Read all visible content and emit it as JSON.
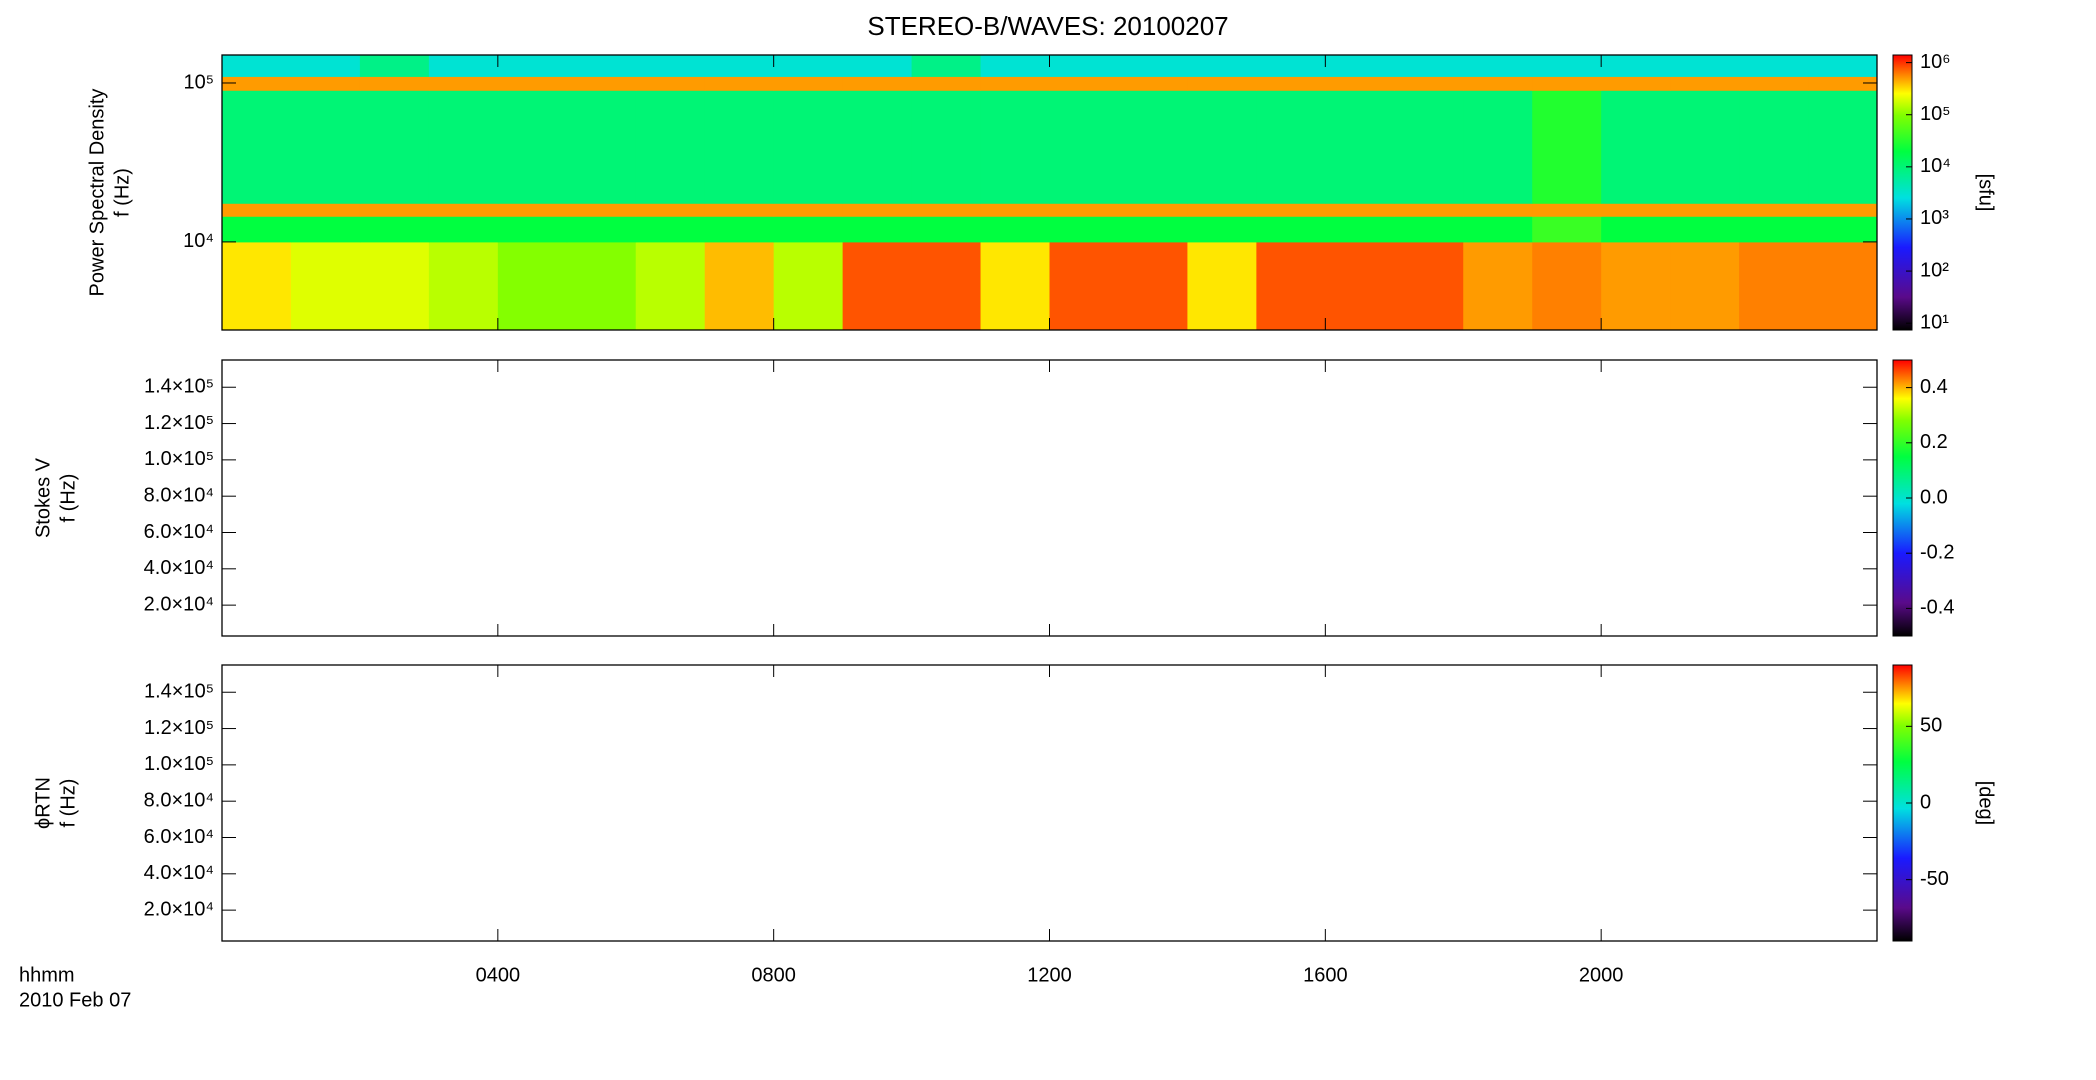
{
  "chart_data": [
    {
      "type": "spectrogram",
      "title": "STEREO-B/WAVES: 20100207",
      "ylabel": [
        "Power Spectral Density",
        "f (Hz)"
      ],
      "zlabel": "[sfu]",
      "ylog": true,
      "ylim": [
        2790,
        150000
      ],
      "yticks": [
        {
          "value": 10000,
          "label": "10⁴"
        },
        {
          "value": 100000,
          "label": "10⁵"
        }
      ],
      "xlim": [
        0,
        24
      ],
      "xticks": [
        4,
        8,
        12,
        16,
        20
      ],
      "x_bins": [
        0,
        1,
        2,
        3,
        4,
        5,
        6,
        7,
        8,
        9,
        10,
        11,
        12,
        13,
        14,
        15,
        16,
        17,
        18,
        19,
        20,
        21,
        22,
        23,
        24
      ],
      "y_bins": [
        2790,
        10000,
        14500,
        17500,
        90000,
        110000,
        150000
      ],
      "values": [
        [
          300000,
          200000,
          200000,
          150000,
          100000,
          100000,
          150000,
          400000,
          150000,
          800000,
          800000,
          300000,
          800000,
          800000,
          300000,
          800000,
          800000,
          800000,
          500000,
          600000,
          500000,
          500000,
          600000,
          600000
        ],
        [
          20000,
          20000,
          20000,
          20000,
          20000,
          20000,
          20000,
          20000,
          20000,
          20000,
          20000,
          20000,
          20000,
          20000,
          20000,
          20000,
          20000,
          20000,
          20000,
          40000,
          20000,
          20000,
          20000,
          20000
        ],
        [
          500000,
          500000,
          500000,
          500000,
          500000,
          500000,
          500000,
          500000,
          500000,
          500000,
          500000,
          500000,
          500000,
          500000,
          500000,
          500000,
          500000,
          500000,
          500000,
          500000,
          500000,
          500000,
          500000,
          500000
        ],
        [
          10000,
          10000,
          10000,
          10000,
          10000,
          10000,
          10000,
          10000,
          10000,
          10000,
          10000,
          10000,
          10000,
          10000,
          10000,
          10000,
          10000,
          10000,
          10000,
          30000,
          10000,
          10000,
          10000,
          10000
        ],
        [
          500000,
          500000,
          500000,
          500000,
          500000,
          500000,
          500000,
          500000,
          500000,
          500000,
          500000,
          500000,
          500000,
          500000,
          500000,
          500000,
          500000,
          500000,
          500000,
          500000,
          500000,
          500000,
          500000,
          500000
        ],
        [
          3000,
          3000,
          8000,
          3000,
          3000,
          3000,
          3000,
          3000,
          3000,
          3000,
          8000,
          3000,
          3000,
          3000,
          3000,
          3000,
          3000,
          3000,
          3000,
          3000,
          3000,
          3000,
          3000,
          3000
        ]
      ],
      "colormap": "rainbow",
      "zlog": true,
      "zlim": [
        7.4,
        1400000
      ],
      "zticks": [
        {
          "value": 10,
          "label": "10¹"
        },
        {
          "value": 100,
          "label": "10²"
        },
        {
          "value": 1000,
          "label": "10³"
        },
        {
          "value": 10000,
          "label": "10⁴"
        },
        {
          "value": 100000,
          "label": "10⁵"
        },
        {
          "value": 1000000,
          "label": "10⁶"
        }
      ]
    },
    {
      "type": "spectrogram",
      "ylabel": [
        "Stokes V",
        "f (Hz)"
      ],
      "ylog": false,
      "ylim": [
        3000,
        155000
      ],
      "yticks": [
        {
          "value": 20000,
          "label": "2.0×10⁴"
        },
        {
          "value": 40000,
          "label": "4.0×10⁴"
        },
        {
          "value": 60000,
          "label": "6.0×10⁴"
        },
        {
          "value": 80000,
          "label": "8.0×10⁴"
        },
        {
          "value": 100000,
          "label": "1.0×10⁵"
        },
        {
          "value": 120000,
          "label": "1.2×10⁵"
        },
        {
          "value": 140000,
          "label": "1.4×10⁵"
        }
      ],
      "xlim": [
        0,
        24
      ],
      "xticks": [
        4,
        8,
        12,
        16,
        20
      ],
      "colormap": "rainbow",
      "zlog": false,
      "zlim": [
        -0.5,
        0.5
      ],
      "zticks": [
        -0.4,
        -0.2,
        {
          "value": 0,
          "label": "0.0"
        },
        0.2,
        0.4
      ]
    },
    {
      "type": "spectrogram",
      "ylabel": [
        "ϕRTN",
        "f (Hz)"
      ],
      "zlabel": "[deg]",
      "ylog": false,
      "ylim": [
        3000,
        155000
      ],
      "yticks": [
        {
          "value": 20000,
          "label": "2.0×10⁴"
        },
        {
          "value": 40000,
          "label": "4.0×10⁴"
        },
        {
          "value": 60000,
          "label": "6.0×10⁴"
        },
        {
          "value": 80000,
          "label": "8.0×10⁴"
        },
        {
          "value": 100000,
          "label": "1.0×10⁵"
        },
        {
          "value": 120000,
          "label": "1.2×10⁵"
        },
        {
          "value": 140000,
          "label": "1.4×10⁵"
        }
      ],
      "xlim": [
        0,
        24
      ],
      "xticks": [
        {
          "value": 4,
          "label": "0400"
        },
        {
          "value": 8,
          "label": "0800"
        },
        {
          "value": 12,
          "label": "1200"
        },
        {
          "value": 16,
          "label": "1600"
        },
        {
          "value": 20,
          "label": "2000"
        }
      ],
      "xlabel": [
        "hhmm",
        "2010 Feb 07"
      ],
      "colormap": "rainbow",
      "zlog": false,
      "zlim": [
        -90,
        90
      ],
      "zticks": [
        -50,
        0,
        50
      ]
    }
  ]
}
